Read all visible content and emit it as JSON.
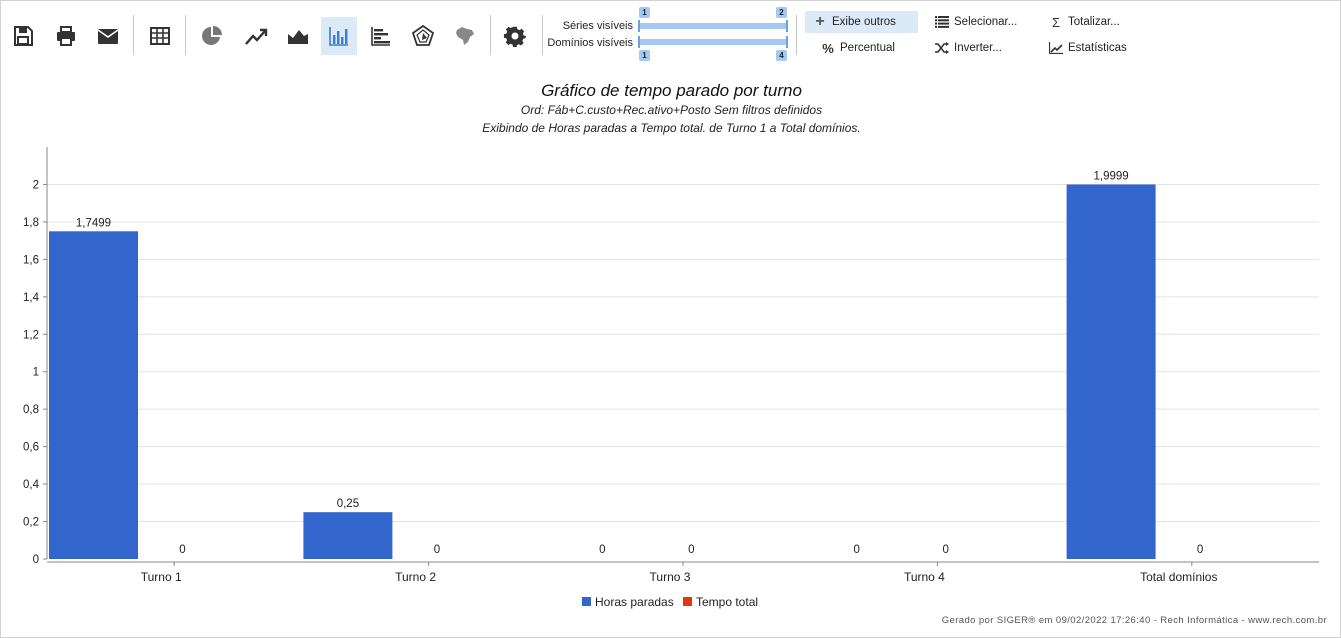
{
  "toolbar": {
    "buttons": [
      {
        "name": "save-icon",
        "x": 22
      },
      {
        "name": "print-icon",
        "x": 65
      },
      {
        "name": "mail-icon",
        "x": 107
      }
    ]
  },
  "sliders": {
    "series_label": "Séries visíveis",
    "domains_label": "Domínios visíveis",
    "series_min": "1",
    "series_max": "2",
    "domains_min": "1",
    "domains_max": "4"
  },
  "commands": {
    "exibe_outros": "Exibe outros",
    "percentual": "Percentual",
    "selecionar": "Selecionar...",
    "inverter": "Inverter...",
    "totalizar": "Totalizar...",
    "estatisticas": "Estatísticas"
  },
  "header": {
    "title": "Gráfico de tempo parado por turno",
    "subtitle1": "Ord: Fáb+C.custo+Rec.ativo+Posto Sem filtros definidos",
    "subtitle2": "Exibindo de Horas paradas a Tempo total. de Turno 1 a Total domínios."
  },
  "chart_data": {
    "type": "bar",
    "categories": [
      "Turno 1",
      "Turno 2",
      "Turno 3",
      "Turno 4",
      "Total domínios"
    ],
    "series": [
      {
        "name": "Horas paradas",
        "values": [
          1.7499,
          0.25,
          0,
          0,
          1.9999
        ],
        "labels": [
          "1,7499",
          "0,25",
          "0",
          "0",
          "1,9999"
        ],
        "color": "#3366cc"
      },
      {
        "name": "Tempo total",
        "values": [
          0,
          0,
          0,
          0,
          0
        ],
        "labels": [
          "0",
          "0",
          "0",
          "0",
          "0"
        ],
        "color": "#dc3912"
      }
    ],
    "ylim": [
      0,
      2.2
    ],
    "yticks": [
      0,
      0.2,
      0.4,
      0.6,
      0.8,
      1,
      1.2,
      1.4,
      1.6,
      1.8,
      2
    ],
    "ytick_labels": [
      "0",
      "0,2",
      "0,4",
      "0,6",
      "0,8",
      "1",
      "1,2",
      "1,4",
      "1,6",
      "1,8",
      "2"
    ],
    "grid": true,
    "legend": "bottom-center"
  },
  "footer": "Gerado por SIGER® em 09/02/2022 17:26:40 - Rech Informática - www.rech.com.br"
}
